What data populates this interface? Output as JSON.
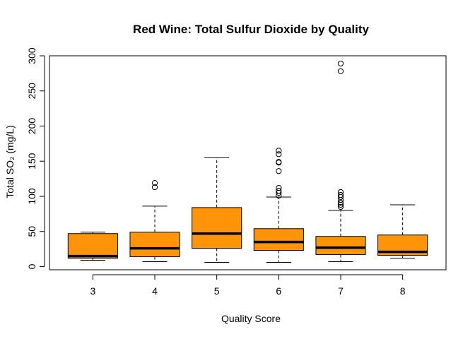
{
  "chart_data": {
    "type": "boxplot",
    "title": "Red Wine: Total Sulfur Dioxide by Quality",
    "xlabel": "Quality Score",
    "ylabel": "Total SO₂ (mg/L)",
    "ylim": [
      0,
      300
    ],
    "yticks": [
      "0",
      "50",
      "100",
      "150",
      "200",
      "250",
      "300"
    ],
    "box_color": "#FF9408",
    "categories": [
      "3",
      "4",
      "5",
      "6",
      "7",
      "8"
    ],
    "boxes": [
      {
        "q1": 12,
        "median": 15,
        "q3": 47,
        "whisker_low": 9,
        "whisker_high": 49,
        "outliers": []
      },
      {
        "q1": 14,
        "median": 26,
        "q3": 49,
        "whisker_low": 7,
        "whisker_high": 86,
        "outliers": [
          113,
          119
        ]
      },
      {
        "q1": 26,
        "median": 47,
        "q3": 84,
        "whisker_low": 6,
        "whisker_high": 155,
        "outliers": []
      },
      {
        "q1": 23,
        "median": 35,
        "q3": 54,
        "whisker_low": 6,
        "whisker_high": 99,
        "outliers": [
          101,
          105,
          108,
          112,
          136,
          148,
          149,
          160,
          165
        ]
      },
      {
        "q1": 17,
        "median": 27,
        "q3": 43,
        "whisker_low": 7,
        "whisker_high": 80,
        "outliers": [
          85,
          88,
          91,
          95,
          99,
          102,
          106,
          278,
          289
        ]
      },
      {
        "q1": 16,
        "median": 21,
        "q3": 45,
        "whisker_low": 12,
        "whisker_high": 88,
        "outliers": []
      }
    ]
  }
}
